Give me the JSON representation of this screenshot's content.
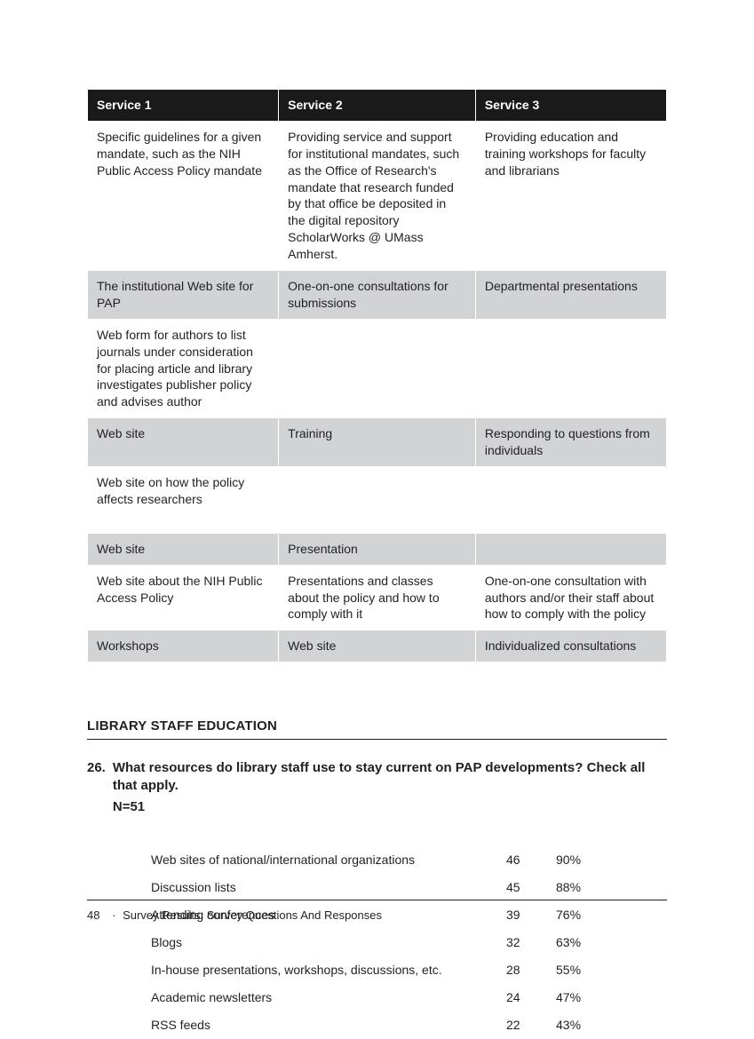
{
  "services_table": {
    "type": "table",
    "header_bg": "#1a1a1a",
    "header_fg": "#ffffff",
    "row_colors": {
      "white": "#ffffff",
      "grey": "#d1d3d4"
    },
    "columns": [
      "Service 1",
      "Service 2",
      "Service 3"
    ],
    "rows": [
      {
        "shade": "white",
        "cells": [
          "Specific guidelines for a given mandate, such as the NIH Public Access Policy mandate",
          "Providing service and support for institutional mandates, such as the Office of Research's mandate that research funded by that office be deposited in the digital repository ScholarWorks @ UMass Amherst.",
          "Providing education and training workshops for faculty and librarians"
        ]
      },
      {
        "shade": "grey",
        "cells": [
          "The institutional Web site for PAP",
          "One-on-one consultations for submissions",
          "Departmental presentations"
        ]
      },
      {
        "shade": "white",
        "cells": [
          "Web form for authors to list journals under consideration for placing article and library investigates publisher policy and advises author",
          "",
          ""
        ]
      },
      {
        "shade": "grey",
        "cells": [
          "Web site",
          "Training",
          "Responding to questions from individuals"
        ]
      },
      {
        "shade": "white",
        "cells": [
          "Web site on how the policy affects researchers",
          "",
          ""
        ]
      },
      {
        "shade": "grey",
        "cells": [
          "Web site",
          "Presentation",
          ""
        ]
      },
      {
        "shade": "white",
        "cells": [
          "Web site about the NIH Public Access Policy",
          "Presentations and classes about the policy and how to comply with it",
          "One-on-one consultation with authors and/or their staff about how to comply with the policy"
        ]
      },
      {
        "shade": "grey",
        "cells": [
          "Workshops",
          "Web site",
          "Individualized consultations"
        ]
      }
    ]
  },
  "section_heading": "LIBRARY STAFF EDUCATION",
  "question": {
    "number": "26.",
    "text": "What resources do library staff use to stay current on PAP developments? Check all that apply.",
    "n": "N=51"
  },
  "results": {
    "type": "table",
    "columns": [
      "label",
      "count",
      "percent"
    ],
    "rows": [
      {
        "label": "Web sites of national/international organizations",
        "count": "46",
        "pct": "90%"
      },
      {
        "label": "Discussion lists",
        "count": "45",
        "pct": "88%"
      },
      {
        "label": "Attending conferences",
        "count": "39",
        "pct": "76%"
      },
      {
        "label": "Blogs",
        "count": "32",
        "pct": "63%"
      },
      {
        "label": "In-house presentations, workshops, discussions, etc.",
        "count": "28",
        "pct": "55%"
      },
      {
        "label": "Academic newsletters",
        "count": "24",
        "pct": "47%"
      },
      {
        "label": "RSS feeds",
        "count": "22",
        "pct": "43%"
      }
    ]
  },
  "footer": {
    "page_number": "48",
    "separator": "·",
    "text": "Survey Results:  Survey Questions And Responses"
  }
}
